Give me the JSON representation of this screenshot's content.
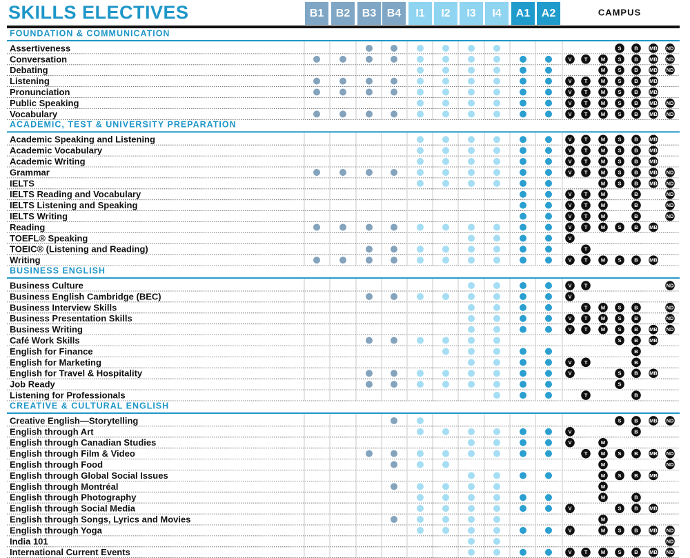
{
  "title": "SKILLS ELECTIVES",
  "campus_header": "CAMPUS",
  "levels": [
    "B1",
    "B2",
    "B3",
    "B4",
    "I1",
    "I2",
    "I3",
    "I4",
    "A1",
    "A2"
  ],
  "sections": [
    {
      "title": "FOUNDATION & COMMUNICATION",
      "rows": [
        {
          "name": "Assertiveness",
          "levels": [
            false,
            false,
            true,
            true,
            true,
            true,
            true,
            true,
            false,
            false
          ],
          "campuses": [
            null,
            null,
            null,
            "S",
            "B",
            "MB",
            "ND"
          ]
        },
        {
          "name": "Conversation",
          "levels": [
            true,
            true,
            true,
            true,
            true,
            true,
            true,
            true,
            true,
            true
          ],
          "campuses": [
            "V",
            "T",
            "M",
            "S",
            "B",
            "MB",
            "ND"
          ]
        },
        {
          "name": "Debating",
          "levels": [
            false,
            false,
            false,
            false,
            true,
            true,
            true,
            true,
            true,
            true
          ],
          "campuses": [
            null,
            null,
            "M",
            "S",
            "B",
            "MB",
            "ND"
          ]
        },
        {
          "name": "Listening",
          "levels": [
            true,
            true,
            true,
            true,
            true,
            true,
            true,
            true,
            true,
            true
          ],
          "campuses": [
            "V",
            "T",
            "M",
            "S",
            "B",
            "MB",
            null
          ]
        },
        {
          "name": "Pronunciation",
          "levels": [
            true,
            true,
            true,
            true,
            true,
            true,
            true,
            true,
            true,
            true
          ],
          "campuses": [
            "V",
            "T",
            "M",
            "S",
            "B",
            "MB",
            null
          ]
        },
        {
          "name": "Public Speaking",
          "levels": [
            false,
            false,
            false,
            false,
            true,
            true,
            true,
            true,
            true,
            true
          ],
          "campuses": [
            "V",
            "T",
            "M",
            "S",
            "B",
            "MB",
            "ND"
          ]
        },
        {
          "name": "Vocabulary",
          "levels": [
            true,
            true,
            true,
            true,
            true,
            true,
            true,
            true,
            true,
            true
          ],
          "campuses": [
            "V",
            "T",
            "M",
            "S",
            "B",
            "MB",
            "ND"
          ]
        }
      ]
    },
    {
      "title": "ACADEMIC, TEST & UNIVERSITY PREPARATION",
      "rows": [
        {
          "name": "Academic Speaking and Listening",
          "levels": [
            false,
            false,
            false,
            false,
            true,
            true,
            true,
            true,
            true,
            true
          ],
          "campuses": [
            "V",
            "T",
            "M",
            "S",
            "B",
            "MB",
            null
          ]
        },
        {
          "name": "Academic Vocabulary",
          "levels": [
            false,
            false,
            false,
            false,
            true,
            true,
            true,
            true,
            true,
            true
          ],
          "campuses": [
            "V",
            "T",
            "M",
            "S",
            "B",
            "MB",
            null
          ]
        },
        {
          "name": "Academic Writing",
          "levels": [
            false,
            false,
            false,
            false,
            true,
            true,
            true,
            true,
            true,
            true
          ],
          "campuses": [
            "V",
            "T",
            "M",
            "S",
            "B",
            "MB",
            null
          ]
        },
        {
          "name": "Grammar",
          "levels": [
            true,
            true,
            true,
            true,
            true,
            true,
            true,
            true,
            true,
            true
          ],
          "campuses": [
            "V",
            "T",
            "M",
            "S",
            "B",
            "MB",
            "ND"
          ]
        },
        {
          "name": "IELTS",
          "levels": [
            false,
            false,
            false,
            false,
            true,
            true,
            true,
            true,
            true,
            true
          ],
          "campuses": [
            null,
            null,
            "M",
            "S",
            "B",
            "MB",
            "ND"
          ]
        },
        {
          "name": "IELTS Reading and Vocabulary",
          "levels": [
            false,
            false,
            false,
            false,
            false,
            false,
            false,
            false,
            true,
            true
          ],
          "campuses": [
            "V",
            "T",
            "M",
            null,
            "B",
            null,
            "ND"
          ]
        },
        {
          "name": "IELTS Listening and Speaking",
          "levels": [
            false,
            false,
            false,
            false,
            false,
            false,
            false,
            false,
            true,
            true
          ],
          "campuses": [
            "V",
            "T",
            "M",
            null,
            "B",
            null,
            "ND"
          ]
        },
        {
          "name": "IELTS Writing",
          "levels": [
            false,
            false,
            false,
            false,
            false,
            false,
            false,
            false,
            true,
            true
          ],
          "campuses": [
            "V",
            "T",
            "M",
            null,
            "B",
            null,
            "ND"
          ]
        },
        {
          "name": "Reading",
          "levels": [
            true,
            true,
            true,
            true,
            true,
            true,
            true,
            true,
            true,
            true
          ],
          "campuses": [
            "V",
            "T",
            "M",
            "S",
            "B",
            "MB",
            null
          ]
        },
        {
          "name": "TOEFL® Speaking",
          "levels": [
            false,
            false,
            false,
            false,
            false,
            false,
            true,
            true,
            true,
            true
          ],
          "campuses": [
            "V",
            null,
            null,
            null,
            null,
            null,
            null
          ]
        },
        {
          "name": "TOEIC® (Listening and Reading)",
          "levels": [
            false,
            false,
            true,
            true,
            true,
            true,
            true,
            true,
            true,
            true
          ],
          "campuses": [
            null,
            "T",
            null,
            null,
            null,
            null,
            null
          ]
        },
        {
          "name": "Writing",
          "levels": [
            true,
            true,
            true,
            true,
            true,
            true,
            true,
            true,
            true,
            true
          ],
          "campuses": [
            "V",
            "T",
            "M",
            "S",
            "B",
            "MB",
            null
          ]
        }
      ]
    },
    {
      "title": "BUSINESS ENGLISH",
      "rows": [
        {
          "name": "Business Culture",
          "levels": [
            false,
            false,
            false,
            false,
            false,
            false,
            true,
            true,
            true,
            true
          ],
          "campuses": [
            "V",
            "T",
            null,
            null,
            null,
            null,
            "ND"
          ]
        },
        {
          "name": "Business English Cambridge (BEC)",
          "levels": [
            false,
            false,
            true,
            true,
            true,
            true,
            true,
            true,
            true,
            true
          ],
          "campuses": [
            "V",
            null,
            null,
            null,
            null,
            null,
            null
          ]
        },
        {
          "name": "Business Interview Skills",
          "levels": [
            false,
            false,
            false,
            false,
            false,
            false,
            true,
            true,
            true,
            true
          ],
          "campuses": [
            null,
            "T",
            "M",
            "S",
            "B",
            null,
            "ND"
          ]
        },
        {
          "name": "Business Presentation Skills",
          "levels": [
            false,
            false,
            false,
            false,
            false,
            false,
            true,
            true,
            true,
            true
          ],
          "campuses": [
            "V",
            "T",
            "M",
            "S",
            "B",
            null,
            "ND"
          ]
        },
        {
          "name": "Business Writing",
          "levels": [
            false,
            false,
            false,
            false,
            false,
            false,
            true,
            true,
            true,
            true
          ],
          "campuses": [
            "V",
            "T",
            "M",
            "S",
            "B",
            "MB",
            "ND"
          ]
        },
        {
          "name": "Café Work Skills",
          "levels": [
            false,
            false,
            true,
            true,
            true,
            true,
            true,
            true,
            false,
            false
          ],
          "campuses": [
            null,
            null,
            null,
            "S",
            "B",
            "MB",
            null
          ]
        },
        {
          "name": "English for Finance",
          "levels": [
            false,
            false,
            false,
            false,
            false,
            true,
            true,
            true,
            true,
            true
          ],
          "campuses": [
            null,
            null,
            null,
            null,
            "B",
            null,
            null
          ]
        },
        {
          "name": "English for Marketing",
          "levels": [
            false,
            false,
            false,
            false,
            false,
            false,
            true,
            true,
            true,
            true
          ],
          "campuses": [
            "V",
            "T",
            null,
            null,
            "B",
            null,
            null
          ]
        },
        {
          "name": "English for Travel & Hospitality",
          "levels": [
            false,
            false,
            true,
            true,
            true,
            true,
            true,
            true,
            true,
            true
          ],
          "campuses": [
            "V",
            null,
            null,
            "S",
            "B",
            "MB",
            null
          ]
        },
        {
          "name": "Job Ready",
          "levels": [
            false,
            false,
            true,
            true,
            true,
            true,
            true,
            true,
            true,
            true
          ],
          "campuses": [
            null,
            null,
            null,
            "S",
            null,
            null,
            null
          ]
        },
        {
          "name": "Listening for Professionals",
          "levels": [
            false,
            false,
            false,
            false,
            false,
            false,
            false,
            true,
            true,
            true
          ],
          "campuses": [
            null,
            "T",
            null,
            null,
            "B",
            null,
            null
          ]
        }
      ]
    },
    {
      "title": "CREATIVE & CULTURAL ENGLISH",
      "rows": [
        {
          "name": "Creative English—Storytelling",
          "levels": [
            false,
            false,
            false,
            true,
            true,
            false,
            false,
            false,
            false,
            false
          ],
          "campuses": [
            null,
            null,
            null,
            "S",
            "B",
            "MB",
            "ND"
          ]
        },
        {
          "name": "English through Art",
          "levels": [
            false,
            false,
            false,
            false,
            true,
            true,
            true,
            true,
            true,
            true
          ],
          "campuses": [
            "V",
            null,
            null,
            null,
            "B",
            null,
            null
          ]
        },
        {
          "name": "English through Canadian Studies",
          "levels": [
            false,
            false,
            false,
            false,
            false,
            false,
            true,
            true,
            true,
            true
          ],
          "campuses": [
            "V",
            null,
            "M",
            null,
            null,
            null,
            null
          ]
        },
        {
          "name": "English through Film & Video",
          "levels": [
            false,
            false,
            true,
            true,
            true,
            true,
            true,
            true,
            true,
            true
          ],
          "campuses": [
            null,
            "T",
            "M",
            "S",
            "B",
            "MB",
            "ND"
          ]
        },
        {
          "name": "English through Food",
          "levels": [
            false,
            false,
            false,
            true,
            true,
            true,
            false,
            false,
            false,
            false
          ],
          "campuses": [
            null,
            null,
            "M",
            null,
            null,
            null,
            "ND"
          ]
        },
        {
          "name": "English through Global Social Issues",
          "levels": [
            false,
            false,
            false,
            false,
            false,
            false,
            true,
            true,
            true,
            true
          ],
          "campuses": [
            null,
            null,
            "M",
            "S",
            "B",
            "MB",
            null
          ]
        },
        {
          "name": "English through Montréal",
          "levels": [
            false,
            false,
            false,
            true,
            true,
            true,
            true,
            true,
            false,
            false
          ],
          "campuses": [
            null,
            null,
            "M",
            null,
            null,
            null,
            null
          ]
        },
        {
          "name": "English through Photography",
          "levels": [
            false,
            false,
            false,
            false,
            true,
            true,
            true,
            true,
            true,
            true
          ],
          "campuses": [
            null,
            null,
            "M",
            null,
            "B",
            null,
            null
          ]
        },
        {
          "name": "English through Social Media",
          "levels": [
            false,
            false,
            false,
            false,
            true,
            true,
            true,
            true,
            true,
            true
          ],
          "campuses": [
            "V",
            null,
            null,
            "S",
            "B",
            "MB",
            null
          ]
        },
        {
          "name": "English through Songs, Lyrics and Movies",
          "levels": [
            false,
            false,
            false,
            true,
            true,
            true,
            true,
            true,
            false,
            false
          ],
          "campuses": [
            null,
            null,
            "M",
            null,
            null,
            null,
            null
          ]
        },
        {
          "name": "English through Yoga",
          "levels": [
            false,
            false,
            false,
            false,
            true,
            true,
            true,
            true,
            true,
            true
          ],
          "campuses": [
            "V",
            null,
            "M",
            "S",
            "B",
            "MB",
            "ND"
          ]
        },
        {
          "name": "India 101",
          "levels": [
            false,
            false,
            false,
            false,
            false,
            false,
            true,
            true,
            false,
            false
          ],
          "campuses": [
            null,
            null,
            null,
            null,
            null,
            null,
            "ND"
          ]
        },
        {
          "name": "International Current Events",
          "levels": [
            false,
            false,
            false,
            false,
            false,
            false,
            true,
            true,
            true,
            true
          ],
          "campuses": [
            "V",
            "T",
            "M",
            "S",
            "B",
            "MB",
            "ND"
          ]
        }
      ]
    }
  ]
}
